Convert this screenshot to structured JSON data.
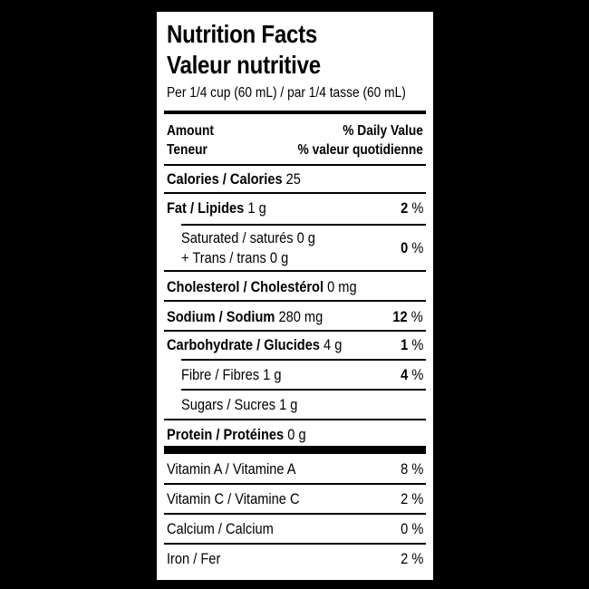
{
  "label": {
    "title_en": "Nutrition Facts",
    "title_fr": "Valeur nutritive",
    "serving": "Per 1/4 cup (60 mL) / par 1/4 tasse (60 mL)",
    "header": {
      "amount_en": "Amount",
      "amount_fr": "Teneur",
      "dv_en": "% Daily Value",
      "dv_fr": "% valeur quotidienne"
    },
    "calories": {
      "name": "Calories / Calories",
      "value": "25"
    },
    "fat": {
      "name": "Fat / Lipides",
      "value": "1 g",
      "pct": "2",
      "pct_sign": "%"
    },
    "saturated": {
      "line1": "Saturated / saturés 0 g",
      "line2": "+ Trans / trans 0 g",
      "pct": "0",
      "pct_sign": "%"
    },
    "cholesterol": {
      "name": "Cholesterol / Cholestérol",
      "value": "0 mg"
    },
    "sodium": {
      "name": "Sodium / Sodium",
      "value": "280 mg",
      "pct": "12",
      "pct_sign": "%"
    },
    "carbohydrate": {
      "name": "Carbohydrate / Glucides",
      "value": "4 g",
      "pct": "1",
      "pct_sign": "%"
    },
    "fibre": {
      "name": "Fibre / Fibres 1 g",
      "pct": "4",
      "pct_sign": "%"
    },
    "sugars": {
      "name": "Sugars / Sucres 1 g"
    },
    "protein": {
      "name": "Protein / Protéines",
      "value": "0 g"
    },
    "vitamin_a": {
      "name": "Vitamin A / Vitamine A",
      "pct": "8",
      "pct_sign": "%"
    },
    "vitamin_c": {
      "name": "Vitamin C / Vitamine C",
      "pct": "2",
      "pct_sign": "%"
    },
    "calcium": {
      "name": "Calcium / Calcium",
      "pct": "0",
      "pct_sign": "%"
    },
    "iron": {
      "name": "Iron / Fer",
      "pct": "2",
      "pct_sign": "%"
    }
  }
}
